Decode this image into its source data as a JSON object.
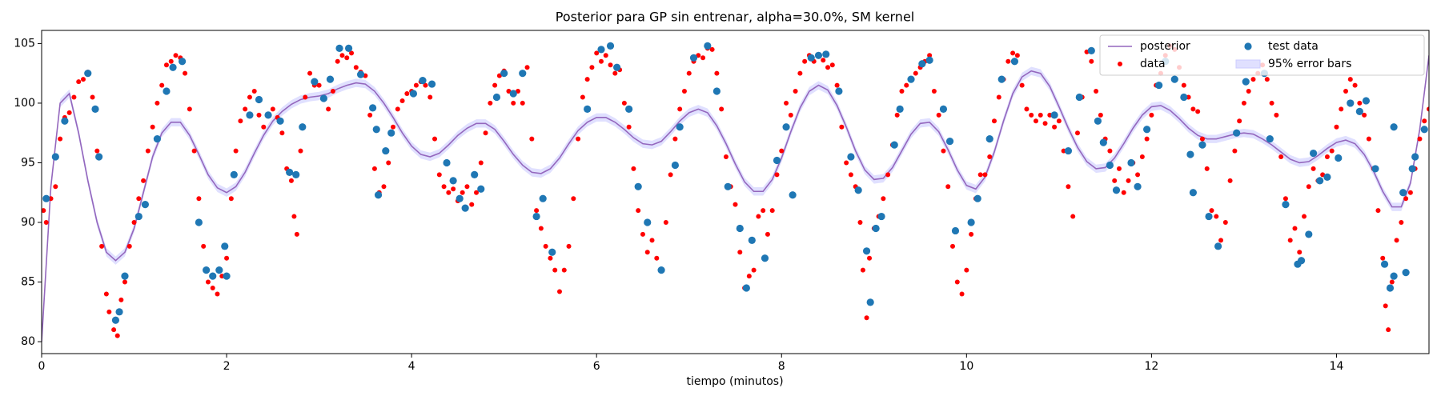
{
  "chart_data": {
    "type": "line",
    "title": "Posterior para GP sin entrenar, alpha=30.0%, SM kernel",
    "x_label": "tiempo (minutos)",
    "xlim": [
      0,
      15
    ],
    "ylim": [
      79,
      106.1
    ],
    "xticks": [
      0,
      2,
      4,
      6,
      8,
      10,
      12,
      14
    ],
    "yticks": [
      80,
      85,
      90,
      95,
      100,
      105
    ],
    "legend": "upper right",
    "legend_columns": 3,
    "series": [
      {
        "name": "posterior",
        "type": "line",
        "color": "#9467bd",
        "x": [
          0,
          0.1,
          0.2,
          0.3,
          0.4,
          0.5,
          0.6,
          0.7,
          0.8,
          0.9,
          1,
          1.1,
          1.2,
          1.3,
          1.4,
          1.5,
          1.6,
          1.7,
          1.8,
          1.9,
          2,
          2.1,
          2.2,
          2.3,
          2.4,
          2.5,
          2.6,
          2.7,
          2.8,
          2.9,
          3,
          3.1,
          3.2,
          3.3,
          3.4,
          3.5,
          3.6,
          3.7,
          3.8,
          3.9,
          4,
          4.1,
          4.2,
          4.3,
          4.4,
          4.5,
          4.6,
          4.7,
          4.8,
          4.9,
          5,
          5.1,
          5.2,
          5.3,
          5.4,
          5.5,
          5.6,
          5.7,
          5.8,
          5.9,
          6,
          6.1,
          6.2,
          6.3,
          6.4,
          6.5,
          6.6,
          6.7,
          6.8,
          6.9,
          7,
          7.1,
          7.2,
          7.3,
          7.4,
          7.5,
          7.6,
          7.7,
          7.8,
          7.9,
          8,
          8.1,
          8.2,
          8.3,
          8.4,
          8.5,
          8.6,
          8.7,
          8.8,
          8.9,
          9,
          9.1,
          9.2,
          9.3,
          9.4,
          9.5,
          9.6,
          9.7,
          9.8,
          9.9,
          10,
          10.1,
          10.2,
          10.3,
          10.4,
          10.5,
          10.6,
          10.7,
          10.8,
          10.9,
          11,
          11.1,
          11.2,
          11.3,
          11.4,
          11.5,
          11.6,
          11.7,
          11.8,
          11.9,
          12,
          12.1,
          12.2,
          12.3,
          12.4,
          12.5,
          12.6,
          12.7,
          12.8,
          12.9,
          13,
          13.1,
          13.2,
          13.3,
          13.4,
          13.5,
          13.6,
          13.7,
          13.8,
          13.9,
          14,
          14.1,
          14.2,
          14.3,
          14.4,
          14.5,
          14.6,
          14.7,
          14.8,
          14.9,
          15
        ],
        "y": [
          80,
          93,
          100,
          100.8,
          97.5,
          93.5,
          90,
          87.5,
          86.8,
          87.5,
          89.5,
          92.5,
          95.5,
          97.5,
          98.4,
          98.4,
          97.3,
          95.7,
          94,
          92.9,
          92.5,
          93,
          94.2,
          95.8,
          97.3,
          98.5,
          99.3,
          99.9,
          100.3,
          100.5,
          100.6,
          100.8,
          101.2,
          101.5,
          101.7,
          101.6,
          101,
          100,
          98.8,
          97.5,
          96.4,
          95.7,
          95.5,
          95.8,
          96.5,
          97.3,
          97.9,
          98.3,
          98.3,
          97.8,
          96.8,
          95.7,
          94.8,
          94.2,
          94.1,
          94.5,
          95.4,
          96.6,
          97.7,
          98.4,
          98.8,
          98.8,
          98.4,
          97.8,
          97.1,
          96.6,
          96.5,
          96.8,
          97.6,
          98.5,
          99.2,
          99.5,
          99.2,
          98.1,
          96.6,
          94.9,
          93.4,
          92.6,
          92.6,
          93.6,
          95.4,
          97.6,
          99.6,
          101,
          101.5,
          101.1,
          99.8,
          98,
          96,
          94.4,
          93.6,
          93.7,
          94.6,
          96,
          97.4,
          98.3,
          98.4,
          97.6,
          96.1,
          94.4,
          93.1,
          92.8,
          93.8,
          95.9,
          98.5,
          100.8,
          102.2,
          102.7,
          102.5,
          101.4,
          99.7,
          97.9,
          96.3,
          95.1,
          94.5,
          94.6,
          95.4,
          96.6,
          97.9,
          99,
          99.7,
          99.8,
          99.4,
          98.7,
          97.9,
          97.3,
          97,
          97,
          97.2,
          97.4,
          97.5,
          97.4,
          97,
          96.5,
          95.9,
          95.3,
          95,
          95.1,
          95.6,
          96.2,
          96.7,
          96.9,
          96.6,
          95.7,
          94.3,
          92.6,
          91.3,
          91.3,
          93.3,
          97.8,
          104
        ]
      },
      {
        "name": "data",
        "type": "scatter",
        "color": "#ff0000",
        "x": [
          0.02,
          0.05,
          0.1,
          0.15,
          0.2,
          0.25,
          0.3,
          0.35,
          0.4,
          0.45,
          0.5,
          0.55,
          0.6,
          0.65,
          0.7,
          0.73,
          0.78,
          0.82,
          0.86,
          0.9,
          0.95,
          1.0,
          1.05,
          1.1,
          1.15,
          1.2,
          1.25,
          1.3,
          1.35,
          1.4,
          1.45,
          1.5,
          1.55,
          1.6,
          1.65,
          1.7,
          1.75,
          1.8,
          1.85,
          1.9,
          1.95,
          2.0,
          2.05,
          2.1,
          2.15,
          2.2,
          2.25,
          2.3,
          2.35,
          2.4,
          2.45,
          2.5,
          2.55,
          2.6,
          2.65,
          2.7,
          2.73,
          2.76,
          2.8,
          2.85,
          2.9,
          2.95,
          3.0,
          3.05,
          3.1,
          3.15,
          3.2,
          3.25,
          3.3,
          3.35,
          3.4,
          3.45,
          3.5,
          3.55,
          3.6,
          3.65,
          3.7,
          3.75,
          3.8,
          3.85,
          3.9,
          3.95,
          4.0,
          4.05,
          4.1,
          4.15,
          4.2,
          4.25,
          4.3,
          4.35,
          4.4,
          4.45,
          4.5,
          4.55,
          4.6,
          4.65,
          4.7,
          4.75,
          4.8,
          4.85,
          4.9,
          4.95,
          5.0,
          5.05,
          5.1,
          5.15,
          5.2,
          5.25,
          5.3,
          5.35,
          5.4,
          5.45,
          5.5,
          5.55,
          5.6,
          5.65,
          5.7,
          5.75,
          5.8,
          5.85,
          5.9,
          5.95,
          6.0,
          6.05,
          6.1,
          6.15,
          6.2,
          6.25,
          6.3,
          6.35,
          6.4,
          6.45,
          6.5,
          6.55,
          6.6,
          6.65,
          6.7,
          6.75,
          6.8,
          6.85,
          6.9,
          6.95,
          7.0,
          7.05,
          7.1,
          7.15,
          7.2,
          7.25,
          7.3,
          7.35,
          7.4,
          7.45,
          7.5,
          7.55,
          7.6,
          7.65,
          7.7,
          7.75,
          7.8,
          7.85,
          7.9,
          7.95,
          8.0,
          8.05,
          8.1,
          8.15,
          8.2,
          8.25,
          8.3,
          8.35,
          8.4,
          8.45,
          8.5,
          8.55,
          8.6,
          8.65,
          8.7,
          8.75,
          8.8,
          8.85,
          8.88,
          8.92,
          8.95,
          9.0,
          9.05,
          9.1,
          9.15,
          9.2,
          9.25,
          9.3,
          9.35,
          9.4,
          9.45,
          9.5,
          9.55,
          9.6,
          9.65,
          9.7,
          9.75,
          9.8,
          9.85,
          9.9,
          9.95,
          10.0,
          10.05,
          10.1,
          10.15,
          10.2,
          10.25,
          10.3,
          10.35,
          10.4,
          10.45,
          10.5,
          10.55,
          10.6,
          10.65,
          10.7,
          10.75,
          10.8,
          10.85,
          10.9,
          10.95,
          11.0,
          11.05,
          11.1,
          11.15,
          11.2,
          11.25,
          11.3,
          11.35,
          11.4,
          11.45,
          11.5,
          11.55,
          11.6,
          11.65,
          11.7,
          11.75,
          11.8,
          11.85,
          11.9,
          11.95,
          12.0,
          12.05,
          12.1,
          12.15,
          12.2,
          12.25,
          12.3,
          12.35,
          12.4,
          12.45,
          12.5,
          12.55,
          12.6,
          12.65,
          12.7,
          12.75,
          12.8,
          12.85,
          12.9,
          12.95,
          13.0,
          13.05,
          13.1,
          13.15,
          13.2,
          13.25,
          13.3,
          13.35,
          13.4,
          13.45,
          13.5,
          13.55,
          13.6,
          13.65,
          13.7,
          13.75,
          13.8,
          13.85,
          13.9,
          13.95,
          14.0,
          14.05,
          14.1,
          14.15,
          14.2,
          14.25,
          14.3,
          14.35,
          14.4,
          14.45,
          14.5,
          14.53,
          14.56,
          14.6,
          14.65,
          14.7,
          14.75,
          14.8,
          14.85,
          14.9,
          14.95,
          15.0
        ],
        "y": [
          91,
          90,
          92,
          93,
          97,
          98.8,
          99.2,
          100.5,
          101.8,
          102,
          102.6,
          100.5,
          96,
          88,
          84,
          82.5,
          81,
          80.5,
          83.5,
          85,
          88,
          90,
          92,
          93.5,
          96,
          98,
          100,
          101.5,
          103.2,
          103.5,
          104,
          103.8,
          102.5,
          99.5,
          96,
          92,
          88,
          85,
          84.5,
          84,
          85.5,
          87,
          92,
          96,
          98.5,
          99.5,
          100.5,
          101,
          99,
          98,
          99,
          99.5,
          98.8,
          97.5,
          94.5,
          93.5,
          90.5,
          89,
          96,
          100.5,
          102.5,
          101.5,
          101.5,
          100.5,
          99.5,
          101,
          103.5,
          104,
          103.8,
          104.2,
          103,
          102.6,
          102.3,
          99,
          94.5,
          92.5,
          93,
          95,
          98,
          99.5,
          100.2,
          100.8,
          101,
          101.5,
          101.8,
          101.5,
          100.5,
          97,
          94,
          93,
          92.5,
          92.8,
          91.8,
          92.5,
          93,
          91.5,
          92.5,
          95,
          97.5,
          100,
          101.5,
          102.3,
          102.7,
          101,
          100,
          101,
          100,
          103,
          97,
          91,
          89.5,
          88,
          87,
          86,
          84.2,
          86,
          88,
          92,
          97,
          100.5,
          102,
          103,
          104.2,
          103.5,
          104,
          103.2,
          102.5,
          102.8,
          100,
          98,
          94.5,
          91,
          89,
          87.5,
          88.5,
          87,
          86,
          90,
          94,
          97,
          99.5,
          101,
          102.5,
          103.5,
          104,
          103.8,
          104.6,
          104.5,
          102.5,
          99.5,
          95.5,
          93,
          91.5,
          87.5,
          84.5,
          85.5,
          86,
          90.5,
          91,
          89,
          91,
          94,
          96,
          100,
          99,
          101,
          102.5,
          103.5,
          104,
          103.5,
          104,
          103.6,
          103,
          103.2,
          101.5,
          98,
          95,
          94,
          93,
          90,
          86,
          82,
          87,
          89.5,
          90.5,
          92,
          94,
          96.5,
          99,
          101,
          101.5,
          102,
          102.5,
          103,
          103.5,
          104,
          101,
          99,
          96,
          93,
          88,
          85,
          84,
          86,
          89,
          92,
          94,
          94,
          95.5,
          98.5,
          100.5,
          102,
          103.5,
          104.2,
          104,
          101.5,
          99.5,
          99,
          98.5,
          99,
          98.3,
          99,
          98,
          98.5,
          96,
          93,
          90.5,
          97.5,
          100.5,
          104.3,
          103.5,
          101,
          99,
          97,
          96,
          93.5,
          94.5,
          92.5,
          93.5,
          95,
          94,
          95.5,
          97,
          99,
          101.5,
          102.5,
          104,
          104.8,
          104.5,
          103,
          101.5,
          100.5,
          99.5,
          99.3,
          97,
          94.5,
          91,
          90.5,
          88.5,
          90,
          93.5,
          96,
          98.5,
          100,
          101,
          102,
          102.5,
          103.2,
          102,
          100,
          99,
          95.5,
          92,
          88.5,
          89.5,
          87.5,
          90.5,
          93,
          94.5,
          93.5,
          94,
          95.5,
          96,
          98,
          99.5,
          101,
          102,
          101.5,
          100,
          99,
          97,
          94.5,
          91,
          87,
          83,
          81,
          85,
          88.5,
          90,
          92,
          92.5,
          94.5,
          97,
          98.5,
          99.5
        ]
      },
      {
        "name": "test data",
        "type": "scatter",
        "color": "#1f77b4",
        "x": [
          0.05,
          0.15,
          0.25,
          0.5,
          0.58,
          0.62,
          0.8,
          0.84,
          0.9,
          1.05,
          1.12,
          1.25,
          1.35,
          1.42,
          1.52,
          1.7,
          1.78,
          1.85,
          1.92,
          1.98,
          2.0,
          2.08,
          2.25,
          2.35,
          2.45,
          2.58,
          2.68,
          2.75,
          2.82,
          2.95,
          3.05,
          3.12,
          3.22,
          3.32,
          3.45,
          3.58,
          3.62,
          3.64,
          3.72,
          3.78,
          4.02,
          4.12,
          4.22,
          4.38,
          4.45,
          4.52,
          4.58,
          4.68,
          4.75,
          4.92,
          5.0,
          5.1,
          5.2,
          5.35,
          5.42,
          5.52,
          5.9,
          6.05,
          6.15,
          6.22,
          6.35,
          6.45,
          6.55,
          6.7,
          6.85,
          6.9,
          7.05,
          7.2,
          7.3,
          7.42,
          7.55,
          7.62,
          7.68,
          7.82,
          7.95,
          8.05,
          8.12,
          8.32,
          8.4,
          8.48,
          8.62,
          8.75,
          8.83,
          8.92,
          8.96,
          9.02,
          9.08,
          9.22,
          9.28,
          9.4,
          9.52,
          9.6,
          9.75,
          9.82,
          9.88,
          10.05,
          10.12,
          10.25,
          10.38,
          10.52,
          10.95,
          11.1,
          11.22,
          11.35,
          11.42,
          11.48,
          11.55,
          11.62,
          11.78,
          11.85,
          11.95,
          12.08,
          12.15,
          12.25,
          12.35,
          12.42,
          12.45,
          12.55,
          12.62,
          12.72,
          12.92,
          13.02,
          13.22,
          13.28,
          13.45,
          13.58,
          13.62,
          13.7,
          13.75,
          13.82,
          13.9,
          14.02,
          14.15,
          14.25,
          14.32,
          14.42,
          14.52,
          14.58,
          14.62,
          14.62,
          14.72,
          14.75,
          14.82,
          14.85,
          14.95
        ],
        "y": [
          92,
          95.5,
          98.5,
          102.5,
          99.5,
          95.5,
          81.8,
          82.5,
          85.5,
          90.5,
          91.5,
          97,
          101,
          103,
          103.5,
          90,
          86,
          85.5,
          86,
          88,
          85.5,
          94,
          99,
          100.3,
          99,
          98.5,
          94.2,
          94,
          98,
          101.8,
          100.4,
          102,
          104.6,
          104.6,
          102.4,
          99.6,
          97.8,
          92.3,
          96,
          97.5,
          100.8,
          101.9,
          101.6,
          95,
          93.5,
          92,
          91.2,
          94,
          92.8,
          100.5,
          102.5,
          100.8,
          102.5,
          90.5,
          92,
          87.5,
          99.5,
          104.5,
          104.8,
          103,
          99.5,
          93,
          90,
          86,
          94.8,
          98,
          103.8,
          104.8,
          101,
          93,
          89.5,
          84.5,
          88.5,
          87,
          95.2,
          98,
          92.3,
          103.8,
          104,
          104.1,
          101,
          95.5,
          92.7,
          87.6,
          83.3,
          89.5,
          90.5,
          96.5,
          99.5,
          102,
          103.3,
          103.6,
          99.5,
          96.8,
          89.3,
          90,
          92,
          97,
          102,
          103.5,
          99,
          96,
          100.5,
          104.4,
          98.5,
          96.7,
          94.8,
          92.7,
          95,
          93,
          97.8,
          101.5,
          103.5,
          102,
          100.5,
          95.7,
          92.5,
          96.5,
          90.5,
          88,
          97.5,
          101.8,
          102.5,
          97,
          91.5,
          86.5,
          86.8,
          89,
          95.8,
          93.5,
          93.8,
          95.4,
          100,
          99.3,
          100.2,
          94.5,
          86.5,
          84.5,
          85.5,
          98,
          92.5,
          85.8,
          94.5,
          95.5,
          97.8
        ]
      },
      {
        "name": "95% error bars",
        "type": "band",
        "color": "#ccccff",
        "halfwidth": 0.35
      }
    ]
  }
}
